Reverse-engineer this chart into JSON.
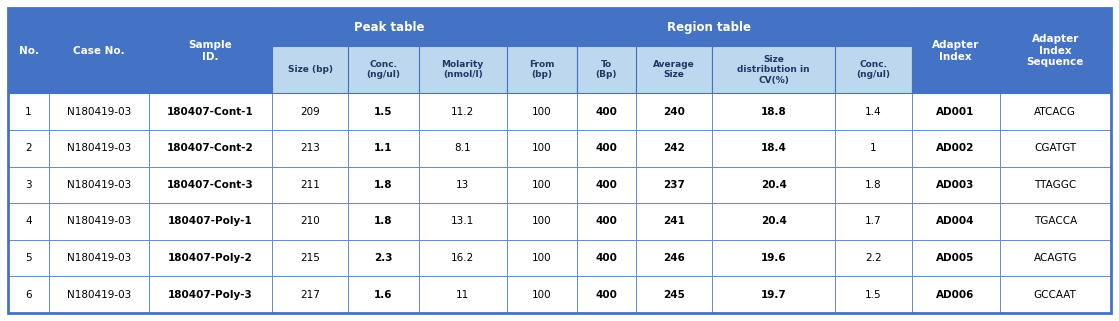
{
  "header_bg_dark": "#4472C4",
  "header_bg_light": "#BDD7EE",
  "header_text_dark": "#FFFFFF",
  "header_text_light": "#1F3864",
  "border_color": "#4472C4",
  "peak_table_label": "Peak table",
  "region_table_label": "Region table",
  "columns": [
    "No.",
    "Case No.",
    "Sample\nID.",
    "Size (bp)",
    "Conc.\n(ng/ul)",
    "Molarity\n(nmol/l)",
    "From\n(bp)",
    "To\n(Bp)",
    "Average\nSize",
    "Size\ndistribution in\nCV(%)",
    "Conc.\n(ng/ul)",
    "Adapter\nIndex",
    "Adapter\nIndex\nSequence"
  ],
  "col_widths_rel": [
    3.5,
    8.5,
    10.5,
    6.5,
    6.0,
    7.5,
    6.0,
    5.0,
    6.5,
    10.5,
    6.5,
    7.5,
    9.5
  ],
  "bold_cols_data": [
    2,
    4,
    6,
    7,
    8,
    10
  ],
  "rows": [
    [
      "1",
      "N180419-03",
      "180407-Cont-1",
      "209",
      "1.5",
      "11.2",
      "100",
      "400",
      "240",
      "18.8",
      "1.4",
      "AD001",
      "ATCACG"
    ],
    [
      "2",
      "N180419-03",
      "180407-Cont-2",
      "213",
      "1.1",
      "8.1",
      "100",
      "400",
      "242",
      "18.4",
      "1",
      "AD002",
      "CGATGT"
    ],
    [
      "3",
      "N180419-03",
      "180407-Cont-3",
      "211",
      "1.8",
      "13",
      "100",
      "400",
      "237",
      "20.4",
      "1.8",
      "AD003",
      "TTAGGC"
    ],
    [
      "4",
      "N180419-03",
      "180407-Poly-1",
      "210",
      "1.8",
      "13.1",
      "100",
      "400",
      "241",
      "20.4",
      "1.7",
      "AD004",
      "TGACCA"
    ],
    [
      "5",
      "N180419-03",
      "180407-Poly-2",
      "215",
      "2.3",
      "16.2",
      "100",
      "400",
      "246",
      "19.6",
      "2.2",
      "AD005",
      "ACAGTG"
    ],
    [
      "6",
      "N180419-03",
      "180407-Poly-3",
      "217",
      "1.6",
      "11",
      "100",
      "400",
      "245",
      "19.7",
      "1.5",
      "AD006",
      "GCCAAT"
    ]
  ],
  "bold_data_cols": [
    2,
    4,
    7,
    8,
    9,
    11
  ],
  "peak_cols": [
    3,
    4,
    5
  ],
  "region_cols": [
    6,
    7,
    8,
    9,
    10
  ],
  "merged_cols": [
    0,
    1,
    2,
    11,
    12
  ]
}
